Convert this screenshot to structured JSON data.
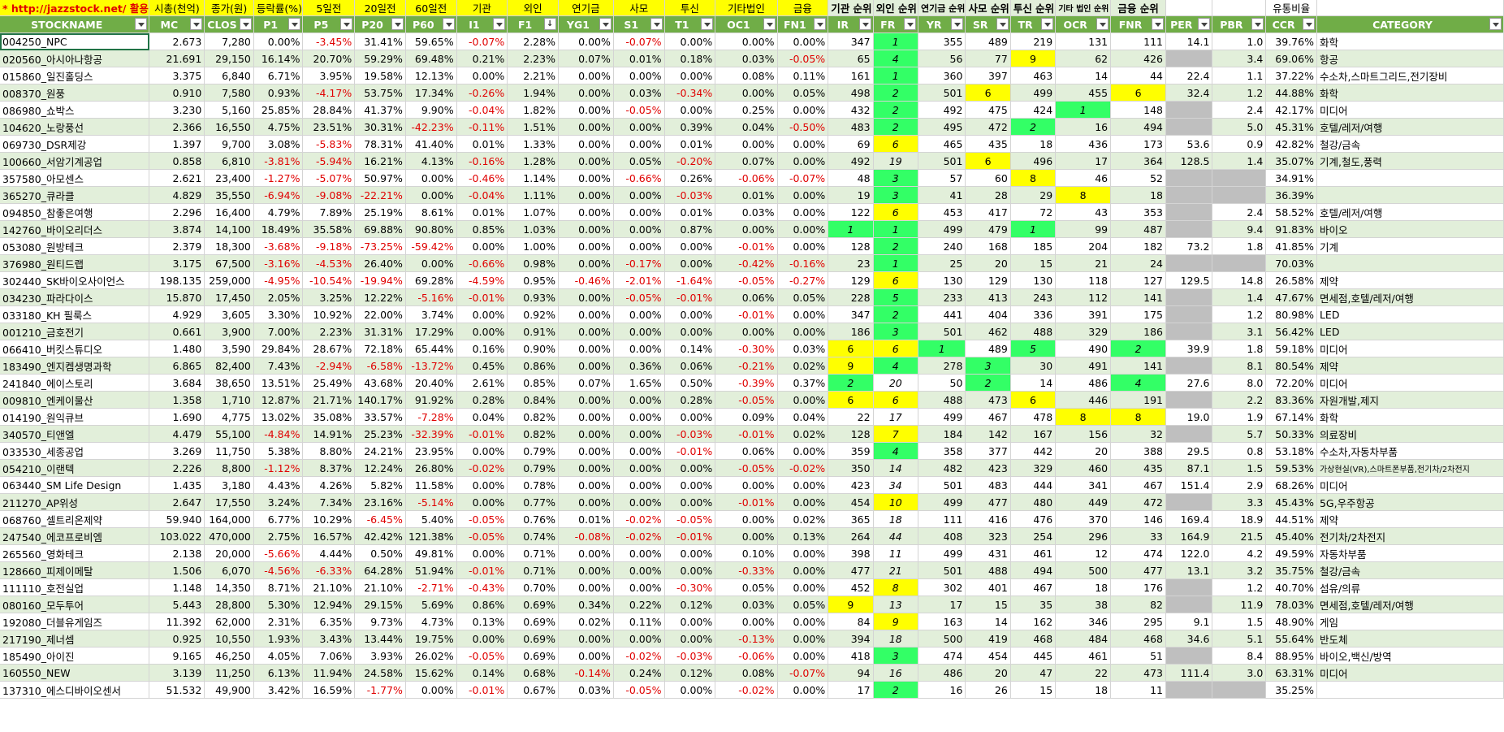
{
  "header_top": [
    "* http://jazzstock.net/ 활용",
    "시총(천억)",
    "종가(원)",
    "등락률(%)",
    "5일전",
    "20일전",
    "60일전",
    "기관",
    "외인",
    "연기금",
    "사모",
    "투신",
    "기타법인",
    "금융",
    "기관 순위",
    "외인 순위",
    "연기금 순위",
    "사모 순위",
    "투신 순위",
    "기타 법인 순위",
    "금융 순위",
    "",
    "",
    "유통비율",
    ""
  ],
  "columns": [
    "STOCKNAME",
    "MC",
    "CLOS",
    "P1",
    "P5",
    "P20",
    "P60",
    "I1",
    "F1",
    "YG1",
    "S1",
    "T1",
    "OC1",
    "FN1",
    "IR",
    "FR",
    "YR",
    "SR",
    "TR",
    "OCR",
    "FNR",
    "PER",
    "PBR",
    "CCR",
    "CATEGORY"
  ],
  "rows": [
    [
      "004250_NPC",
      "2.673",
      "7,280",
      "0.00%",
      "-3.45%",
      "31.41%",
      "59.65%",
      "-0.07%",
      "2.28%",
      "0.00%",
      "-0.07%",
      "0.00%",
      "0.00%",
      "0.00%",
      "347",
      "1",
      "355",
      "489",
      "219",
      "131",
      "111",
      "14.1",
      "1.0",
      "39.76%",
      "화학"
    ],
    [
      "020560_아시아나항공",
      "21.691",
      "29,150",
      "16.14%",
      "20.70%",
      "59.29%",
      "69.48%",
      "0.21%",
      "2.23%",
      "0.07%",
      "0.01%",
      "0.18%",
      "0.03%",
      "-0.05%",
      "65",
      "4",
      "56",
      "77",
      "9",
      "62",
      "426",
      "",
      "3.4",
      "69.06%",
      "항공"
    ],
    [
      "015860_일진홀딩스",
      "3.375",
      "6,840",
      "6.71%",
      "3.95%",
      "19.58%",
      "12.13%",
      "0.00%",
      "2.21%",
      "0.00%",
      "0.00%",
      "0.00%",
      "0.08%",
      "0.11%",
      "161",
      "1",
      "360",
      "397",
      "463",
      "14",
      "44",
      "22.4",
      "1.1",
      "37.22%",
      "수소차,스마트그리드,전기장비"
    ],
    [
      "008370_원풍",
      "0.910",
      "7,580",
      "0.93%",
      "-4.17%",
      "53.75%",
      "17.34%",
      "-0.26%",
      "1.94%",
      "0.00%",
      "0.03%",
      "-0.34%",
      "0.00%",
      "0.05%",
      "498",
      "2",
      "501",
      "6",
      "499",
      "455",
      "6",
      "32.4",
      "1.2",
      "44.88%",
      "화학"
    ],
    [
      "086980_쇼박스",
      "3.230",
      "5,160",
      "25.85%",
      "28.84%",
      "41.37%",
      "9.90%",
      "-0.04%",
      "1.82%",
      "0.00%",
      "-0.05%",
      "0.00%",
      "0.25%",
      "0.00%",
      "432",
      "2",
      "492",
      "475",
      "424",
      "1",
      "148",
      "",
      "2.4",
      "42.17%",
      "미디어"
    ],
    [
      "104620_노랑풍선",
      "2.366",
      "16,550",
      "4.75%",
      "23.51%",
      "30.31%",
      "-42.23%",
      "-0.11%",
      "1.51%",
      "0.00%",
      "0.00%",
      "0.39%",
      "0.04%",
      "-0.50%",
      "483",
      "2",
      "495",
      "472",
      "2",
      "16",
      "494",
      "",
      "5.0",
      "45.31%",
      "호텔/레저/여행"
    ],
    [
      "069730_DSR제강",
      "1.397",
      "9,700",
      "3.08%",
      "-5.83%",
      "78.31%",
      "41.40%",
      "0.01%",
      "1.33%",
      "0.00%",
      "0.00%",
      "0.01%",
      "0.00%",
      "0.00%",
      "69",
      "6",
      "465",
      "435",
      "18",
      "436",
      "173",
      "53.6",
      "0.9",
      "42.82%",
      "철강/금속"
    ],
    [
      "100660_서암기계공업",
      "0.858",
      "6,810",
      "-3.81%",
      "-5.94%",
      "16.21%",
      "4.13%",
      "-0.16%",
      "1.28%",
      "0.00%",
      "0.05%",
      "-0.20%",
      "0.07%",
      "0.00%",
      "492",
      "19",
      "501",
      "6",
      "496",
      "17",
      "364",
      "128.5",
      "1.4",
      "35.07%",
      "기계,철도,풍력"
    ],
    [
      "357580_아모센스",
      "2.621",
      "23,400",
      "-1.27%",
      "-5.07%",
      "50.97%",
      "0.00%",
      "-0.46%",
      "1.14%",
      "0.00%",
      "-0.66%",
      "0.26%",
      "-0.06%",
      "-0.07%",
      "48",
      "3",
      "57",
      "60",
      "8",
      "46",
      "52",
      "",
      "",
      "34.91%",
      ""
    ],
    [
      "365270_큐라클",
      "4.829",
      "35,550",
      "-6.94%",
      "-9.08%",
      "-22.21%",
      "0.00%",
      "-0.04%",
      "1.11%",
      "0.00%",
      "0.00%",
      "-0.03%",
      "0.01%",
      "0.00%",
      "19",
      "3",
      "41",
      "28",
      "29",
      "8",
      "18",
      "",
      "",
      "36.39%",
      ""
    ],
    [
      "094850_참좋은여행",
      "2.296",
      "16,400",
      "4.79%",
      "7.89%",
      "25.19%",
      "8.61%",
      "0.01%",
      "1.07%",
      "0.00%",
      "0.00%",
      "0.01%",
      "0.03%",
      "0.00%",
      "122",
      "6",
      "453",
      "417",
      "72",
      "43",
      "353",
      "",
      "2.4",
      "58.52%",
      "호텔/레저/여행"
    ],
    [
      "142760_바이오리더스",
      "3.874",
      "14,100",
      "18.49%",
      "35.58%",
      "69.88%",
      "90.80%",
      "0.85%",
      "1.03%",
      "0.00%",
      "0.00%",
      "0.87%",
      "0.00%",
      "0.00%",
      "1",
      "1",
      "499",
      "479",
      "1",
      "99",
      "487",
      "",
      "9.4",
      "91.83%",
      "바이오"
    ],
    [
      "053080_원방테크",
      "2.379",
      "18,300",
      "-3.68%",
      "-9.18%",
      "-73.25%",
      "-59.42%",
      "0.00%",
      "1.00%",
      "0.00%",
      "0.00%",
      "0.00%",
      "-0.01%",
      "0.00%",
      "128",
      "2",
      "240",
      "168",
      "185",
      "204",
      "182",
      "73.2",
      "1.8",
      "41.85%",
      "기계"
    ],
    [
      "376980_원티드랩",
      "3.175",
      "67,500",
      "-3.16%",
      "-4.53%",
      "26.40%",
      "0.00%",
      "-0.66%",
      "0.98%",
      "0.00%",
      "-0.17%",
      "0.00%",
      "-0.42%",
      "-0.16%",
      "23",
      "1",
      "25",
      "20",
      "15",
      "21",
      "24",
      "",
      "",
      "70.03%",
      ""
    ],
    [
      "302440_SK바이오사이언스",
      "198.135",
      "259,000",
      "-4.95%",
      "-10.54%",
      "-19.94%",
      "69.28%",
      "-4.59%",
      "0.95%",
      "-0.46%",
      "-2.01%",
      "-1.64%",
      "-0.05%",
      "-0.27%",
      "129",
      "6",
      "130",
      "129",
      "130",
      "118",
      "127",
      "129.5",
      "14.8",
      "26.58%",
      "제약"
    ],
    [
      "034230_파라다이스",
      "15.870",
      "17,450",
      "2.05%",
      "3.25%",
      "12.22%",
      "-5.16%",
      "-0.01%",
      "0.93%",
      "0.00%",
      "-0.05%",
      "-0.01%",
      "0.06%",
      "0.05%",
      "228",
      "5",
      "233",
      "413",
      "243",
      "112",
      "141",
      "",
      "1.4",
      "47.67%",
      "면세점,호텔/레저/여행"
    ],
    [
      "033180_KH 필룩스",
      "4.929",
      "3,605",
      "3.30%",
      "10.92%",
      "22.00%",
      "3.74%",
      "0.00%",
      "0.92%",
      "0.00%",
      "0.00%",
      "0.00%",
      "-0.01%",
      "0.00%",
      "347",
      "2",
      "441",
      "404",
      "336",
      "391",
      "175",
      "",
      "1.2",
      "80.98%",
      "LED"
    ],
    [
      "001210_금호전기",
      "0.661",
      "3,900",
      "7.00%",
      "2.23%",
      "31.31%",
      "17.29%",
      "0.00%",
      "0.91%",
      "0.00%",
      "0.00%",
      "0.00%",
      "0.00%",
      "0.00%",
      "186",
      "3",
      "501",
      "462",
      "488",
      "329",
      "186",
      "",
      "3.1",
      "56.42%",
      "LED"
    ],
    [
      "066410_버킷스튜디오",
      "1.480",
      "3,590",
      "29.84%",
      "28.67%",
      "72.18%",
      "65.44%",
      "0.16%",
      "0.90%",
      "0.00%",
      "0.00%",
      "0.14%",
      "-0.30%",
      "0.03%",
      "6",
      "6",
      "1",
      "489",
      "5",
      "490",
      "2",
      "39.9",
      "1.8",
      "59.18%",
      "미디어"
    ],
    [
      "183490_엔지켐생명과학",
      "6.865",
      "82,400",
      "7.43%",
      "-2.94%",
      "-6.58%",
      "-13.72%",
      "0.45%",
      "0.86%",
      "0.00%",
      "0.36%",
      "0.06%",
      "-0.21%",
      "0.02%",
      "9",
      "4",
      "278",
      "3",
      "30",
      "491",
      "141",
      "",
      "8.1",
      "80.54%",
      "제약"
    ],
    [
      "241840_에이스토리",
      "3.684",
      "38,650",
      "13.51%",
      "25.49%",
      "43.68%",
      "20.40%",
      "2.61%",
      "0.85%",
      "0.07%",
      "1.65%",
      "0.50%",
      "-0.39%",
      "0.37%",
      "2",
      "20",
      "50",
      "2",
      "14",
      "486",
      "4",
      "27.6",
      "8.0",
      "72.20%",
      "미디어"
    ],
    [
      "009810_엔케이물산",
      "1.358",
      "1,710",
      "12.87%",
      "21.71%",
      "140.17%",
      "91.92%",
      "0.28%",
      "0.84%",
      "0.00%",
      "0.00%",
      "0.28%",
      "-0.05%",
      "0.00%",
      "6",
      "6",
      "488",
      "473",
      "6",
      "446",
      "191",
      "",
      "2.2",
      "83.36%",
      "자원개발,제지"
    ],
    [
      "014190_원익큐브",
      "1.690",
      "4,775",
      "13.02%",
      "35.08%",
      "33.57%",
      "-7.28%",
      "0.04%",
      "0.82%",
      "0.00%",
      "0.00%",
      "0.00%",
      "0.09%",
      "0.04%",
      "22",
      "17",
      "499",
      "467",
      "478",
      "8",
      "8",
      "19.0",
      "1.9",
      "67.14%",
      "화학"
    ],
    [
      "340570_티앤엘",
      "4.479",
      "55,100",
      "-4.84%",
      "14.91%",
      "25.23%",
      "-32.39%",
      "-0.01%",
      "0.82%",
      "0.00%",
      "0.00%",
      "-0.03%",
      "-0.01%",
      "0.02%",
      "128",
      "7",
      "184",
      "142",
      "167",
      "156",
      "32",
      "",
      "5.7",
      "50.33%",
      "의료장비"
    ],
    [
      "033530_세종공업",
      "3.269",
      "11,750",
      "5.38%",
      "8.80%",
      "24.21%",
      "23.95%",
      "0.00%",
      "0.79%",
      "0.00%",
      "0.00%",
      "-0.01%",
      "0.06%",
      "0.00%",
      "359",
      "4",
      "358",
      "377",
      "442",
      "20",
      "388",
      "29.5",
      "0.8",
      "53.18%",
      "수소차,자동차부품"
    ],
    [
      "054210_이랜텍",
      "2.226",
      "8,800",
      "-1.12%",
      "8.37%",
      "12.24%",
      "26.80%",
      "-0.02%",
      "0.79%",
      "0.00%",
      "0.00%",
      "0.00%",
      "-0.05%",
      "-0.02%",
      "350",
      "14",
      "482",
      "423",
      "329",
      "460",
      "435",
      "87.1",
      "1.5",
      "59.53%",
      "가상현실(VR),스마트폰부품,전기차/2차전지"
    ],
    [
      "063440_SM Life Design",
      "1.435",
      "3,180",
      "4.43%",
      "4.26%",
      "5.82%",
      "11.58%",
      "0.00%",
      "0.78%",
      "0.00%",
      "0.00%",
      "0.00%",
      "0.00%",
      "0.00%",
      "423",
      "34",
      "501",
      "483",
      "444",
      "341",
      "467",
      "151.4",
      "2.9",
      "68.26%",
      "미디어"
    ],
    [
      "211270_AP위성",
      "2.647",
      "17,550",
      "3.24%",
      "7.34%",
      "23.16%",
      "-5.14%",
      "0.00%",
      "0.77%",
      "0.00%",
      "0.00%",
      "0.00%",
      "-0.01%",
      "0.00%",
      "454",
      "10",
      "499",
      "477",
      "480",
      "449",
      "472",
      "",
      "3.3",
      "45.43%",
      "5G,우주항공"
    ],
    [
      "068760_셀트리온제약",
      "59.940",
      "164,000",
      "6.77%",
      "10.29%",
      "-6.45%",
      "5.40%",
      "-0.05%",
      "0.76%",
      "0.01%",
      "-0.02%",
      "-0.05%",
      "0.00%",
      "0.02%",
      "365",
      "18",
      "111",
      "416",
      "476",
      "370",
      "146",
      "169.4",
      "18.9",
      "44.51%",
      "제약"
    ],
    [
      "247540_에코프로비엠",
      "103.022",
      "470,000",
      "2.75%",
      "16.57%",
      "42.42%",
      "121.38%",
      "-0.05%",
      "0.74%",
      "-0.08%",
      "-0.02%",
      "-0.01%",
      "0.00%",
      "0.13%",
      "264",
      "44",
      "408",
      "323",
      "254",
      "296",
      "33",
      "164.9",
      "21.5",
      "45.40%",
      "전기차/2차전지"
    ],
    [
      "265560_영화테크",
      "2.138",
      "20,000",
      "-5.66%",
      "4.44%",
      "0.50%",
      "49.81%",
      "0.00%",
      "0.71%",
      "0.00%",
      "0.00%",
      "0.00%",
      "0.10%",
      "0.00%",
      "398",
      "11",
      "499",
      "431",
      "461",
      "12",
      "474",
      "122.0",
      "4.2",
      "49.59%",
      "자동차부품"
    ],
    [
      "128660_피제이메탈",
      "1.506",
      "6,070",
      "-4.56%",
      "-6.33%",
      "64.28%",
      "51.94%",
      "-0.01%",
      "0.71%",
      "0.00%",
      "0.00%",
      "0.00%",
      "-0.33%",
      "0.00%",
      "477",
      "21",
      "501",
      "488",
      "494",
      "500",
      "477",
      "13.1",
      "3.2",
      "35.75%",
      "철강/금속"
    ],
    [
      "111110_호전실업",
      "1.148",
      "14,350",
      "8.71%",
      "21.10%",
      "21.10%",
      "-2.71%",
      "-0.43%",
      "0.70%",
      "0.00%",
      "0.00%",
      "-0.30%",
      "0.05%",
      "0.00%",
      "452",
      "8",
      "302",
      "401",
      "467",
      "18",
      "176",
      "",
      "1.2",
      "40.70%",
      "섬유/의류"
    ],
    [
      "080160_모두투어",
      "5.443",
      "28,800",
      "5.30%",
      "12.94%",
      "29.15%",
      "5.69%",
      "0.86%",
      "0.69%",
      "0.34%",
      "0.22%",
      "0.12%",
      "0.03%",
      "0.05%",
      "9",
      "13",
      "17",
      "15",
      "35",
      "38",
      "82",
      "",
      "11.9",
      "78.03%",
      "면세점,호텔/레저/여행"
    ],
    [
      "192080_더블유게임즈",
      "11.392",
      "62,000",
      "2.31%",
      "6.35%",
      "9.73%",
      "4.73%",
      "0.13%",
      "0.69%",
      "0.02%",
      "0.11%",
      "0.00%",
      "0.00%",
      "0.00%",
      "84",
      "9",
      "163",
      "14",
      "162",
      "346",
      "295",
      "9.1",
      "1.5",
      "48.90%",
      "게임"
    ],
    [
      "217190_제너셈",
      "0.925",
      "10,550",
      "1.93%",
      "3.43%",
      "13.44%",
      "19.75%",
      "0.00%",
      "0.69%",
      "0.00%",
      "0.00%",
      "0.00%",
      "-0.13%",
      "0.00%",
      "394",
      "18",
      "500",
      "419",
      "468",
      "484",
      "468",
      "34.6",
      "5.1",
      "55.64%",
      "반도체"
    ],
    [
      "185490_아이진",
      "9.165",
      "46,250",
      "4.05%",
      "7.06%",
      "3.93%",
      "26.02%",
      "-0.05%",
      "0.69%",
      "0.00%",
      "-0.02%",
      "-0.03%",
      "-0.06%",
      "0.00%",
      "418",
      "3",
      "474",
      "454",
      "445",
      "461",
      "51",
      "",
      "8.4",
      "88.95%",
      "바이오,백신/방역"
    ],
    [
      "160550_NEW",
      "3.139",
      "11,250",
      "6.13%",
      "11.94%",
      "24.58%",
      "15.62%",
      "0.14%",
      "0.68%",
      "-0.14%",
      "0.24%",
      "0.12%",
      "0.08%",
      "-0.07%",
      "94",
      "16",
      "486",
      "20",
      "47",
      "22",
      "473",
      "111.4",
      "3.0",
      "63.31%",
      "미디어"
    ],
    [
      "137310_에스디바이오센서",
      "51.532",
      "49,900",
      "3.42%",
      "16.59%",
      "-1.77%",
      "0.00%",
      "-0.01%",
      "0.67%",
      "0.03%",
      "-0.05%",
      "0.00%",
      "-0.02%",
      "0.00%",
      "17",
      "2",
      "16",
      "26",
      "15",
      "18",
      "11",
      "",
      "",
      "35.25%",
      ""
    ]
  ],
  "highlights": {
    "IR_yellow": [
      "066410_버킷스튜디오",
      "183490_엔지켐생명과학",
      "009810_엔케이물산"
    ],
    "note": "green/yellow rank cells"
  }
}
